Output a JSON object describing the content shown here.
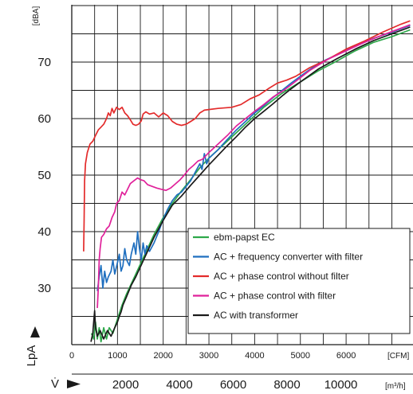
{
  "chart_data": {
    "type": "line",
    "y_unit": "[dBA]",
    "y_axis_label": "LpA",
    "x_unit_top": "[CFM]",
    "x_unit_bottom": "[m³/h]",
    "x_axis_label": "V̇",
    "xlim_cfm": [
      0,
      7400
    ],
    "ylim": [
      20,
      80
    ],
    "x_ticks_cfm": [
      {
        "value": 0,
        "label": "0"
      },
      {
        "value": 1000,
        "label": "1000"
      },
      {
        "value": 2000,
        "label": "2000"
      },
      {
        "value": 3000,
        "label": "3000"
      },
      {
        "value": 4000,
        "label": "4000"
      },
      {
        "value": 5000,
        "label": "5000"
      },
      {
        "value": 6000,
        "label": "6000"
      }
    ],
    "x_ticks_m3h": [
      {
        "value": 2000,
        "label": "2000"
      },
      {
        "value": 4000,
        "label": "4000"
      },
      {
        "value": 6000,
        "label": "6000"
      },
      {
        "value": 8000,
        "label": "8000"
      },
      {
        "value": 10000,
        "label": "10000"
      }
    ],
    "y_ticks": [
      {
        "value": 30,
        "label": "30"
      },
      {
        "value": 40,
        "label": "40"
      },
      {
        "value": 50,
        "label": "50"
      },
      {
        "value": 60,
        "label": "60"
      },
      {
        "value": 70,
        "label": "70"
      }
    ],
    "grid": true,
    "legend_position": "bottom-right",
    "series": [
      {
        "name": "ebm-papst EC",
        "color": "#2ea84a",
        "points": [
          [
            430,
            22
          ],
          [
            480,
            21
          ],
          [
            520,
            24
          ],
          [
            560,
            21
          ],
          [
            600,
            23
          ],
          [
            640,
            20.5
          ],
          [
            700,
            23
          ],
          [
            760,
            21
          ],
          [
            820,
            23
          ],
          [
            900,
            22
          ],
          [
            1000,
            24.5
          ],
          [
            1100,
            27
          ],
          [
            1200,
            29
          ],
          [
            1400,
            32.5
          ],
          [
            1600,
            36
          ],
          [
            1800,
            39.5
          ],
          [
            2000,
            42.5
          ],
          [
            2200,
            45
          ],
          [
            2400,
            47.2
          ],
          [
            2600,
            49.2
          ],
          [
            2800,
            51.3
          ],
          [
            3000,
            53
          ],
          [
            3400,
            56
          ],
          [
            3800,
            59
          ],
          [
            4200,
            62
          ],
          [
            4600,
            64.5
          ],
          [
            5000,
            66.5
          ],
          [
            5400,
            68.5
          ],
          [
            5800,
            70.2
          ],
          [
            6200,
            72
          ],
          [
            6600,
            73.5
          ],
          [
            7000,
            74.5
          ],
          [
            7400,
            75.7
          ]
        ]
      },
      {
        "name": "AC + frequency converter with filter",
        "color": "#1f6fbf",
        "points": [
          [
            560,
            29.5
          ],
          [
            600,
            32
          ],
          [
            640,
            34
          ],
          [
            680,
            30
          ],
          [
            720,
            33
          ],
          [
            760,
            31
          ],
          [
            800,
            32
          ],
          [
            860,
            33
          ],
          [
            900,
            35
          ],
          [
            940,
            32.5
          ],
          [
            1000,
            34.5
          ],
          [
            1040,
            36
          ],
          [
            1080,
            33
          ],
          [
            1120,
            34
          ],
          [
            1160,
            37
          ],
          [
            1200,
            35
          ],
          [
            1260,
            34
          ],
          [
            1300,
            36
          ],
          [
            1360,
            38
          ],
          [
            1400,
            36
          ],
          [
            1440,
            40
          ],
          [
            1480,
            37
          ],
          [
            1520,
            35
          ],
          [
            1560,
            38
          ],
          [
            1600,
            36
          ],
          [
            1640,
            37.5
          ],
          [
            1700,
            36.5
          ],
          [
            1800,
            38
          ],
          [
            1900,
            40
          ],
          [
            2000,
            42.2
          ],
          [
            2100,
            44
          ],
          [
            2200,
            45.5
          ],
          [
            2300,
            46.5
          ],
          [
            2400,
            47
          ],
          [
            2500,
            48
          ],
          [
            2600,
            49
          ],
          [
            2700,
            50.5
          ],
          [
            2800,
            52
          ],
          [
            2850,
            51
          ],
          [
            2900,
            53.8
          ],
          [
            2950,
            52
          ],
          [
            3000,
            53
          ],
          [
            3200,
            54.5
          ],
          [
            3400,
            56.3
          ],
          [
            3600,
            58
          ],
          [
            3800,
            59.5
          ],
          [
            4000,
            61
          ],
          [
            4200,
            62.3
          ],
          [
            4400,
            63.7
          ],
          [
            4600,
            65
          ],
          [
            4800,
            66.3
          ],
          [
            5000,
            67.5
          ],
          [
            5400,
            69.8
          ],
          [
            5800,
            71.3
          ],
          [
            6200,
            72.8
          ],
          [
            6600,
            74.2
          ],
          [
            7000,
            75.3
          ],
          [
            7400,
            76.5
          ]
        ]
      },
      {
        "name": "AC + phase control without filter",
        "color": "#e32b2b",
        "points": [
          [
            260,
            36.5
          ],
          [
            270,
            42
          ],
          [
            280,
            49
          ],
          [
            300,
            52
          ],
          [
            340,
            54
          ],
          [
            400,
            55.5
          ],
          [
            460,
            56
          ],
          [
            520,
            57
          ],
          [
            580,
            58
          ],
          [
            640,
            58.5
          ],
          [
            700,
            59
          ],
          [
            760,
            60
          ],
          [
            800,
            61
          ],
          [
            840,
            60.5
          ],
          [
            880,
            61.8
          ],
          [
            920,
            61
          ],
          [
            980,
            62
          ],
          [
            1040,
            61.6
          ],
          [
            1100,
            62
          ],
          [
            1160,
            61
          ],
          [
            1220,
            60.5
          ],
          [
            1280,
            59.8
          ],
          [
            1340,
            59
          ],
          [
            1400,
            58.8
          ],
          [
            1460,
            59
          ],
          [
            1520,
            59.6
          ],
          [
            1560,
            60.8
          ],
          [
            1620,
            61.2
          ],
          [
            1700,
            60.8
          ],
          [
            1800,
            61
          ],
          [
            1900,
            60.3
          ],
          [
            2000,
            61
          ],
          [
            2100,
            60.5
          ],
          [
            2200,
            59.5
          ],
          [
            2300,
            59
          ],
          [
            2400,
            58.8
          ],
          [
            2500,
            59
          ],
          [
            2600,
            59.5
          ],
          [
            2700,
            60
          ],
          [
            2800,
            61
          ],
          [
            2900,
            61.5
          ],
          [
            3000,
            61.6
          ],
          [
            3200,
            61.8
          ],
          [
            3500,
            62
          ],
          [
            3700,
            62.5
          ],
          [
            3900,
            63.5
          ],
          [
            4100,
            64.2
          ],
          [
            4300,
            65.3
          ],
          [
            4500,
            66.3
          ],
          [
            4700,
            66.8
          ],
          [
            4900,
            67.5
          ],
          [
            5200,
            69
          ],
          [
            5600,
            70.5
          ],
          [
            6000,
            72.3
          ],
          [
            6400,
            73.7
          ],
          [
            6800,
            75.3
          ],
          [
            7200,
            76.7
          ],
          [
            7400,
            77.3
          ]
        ]
      },
      {
        "name": "AC + phase control with filter",
        "color": "#e0219a",
        "points": [
          [
            560,
            26.5
          ],
          [
            580,
            30
          ],
          [
            600,
            35
          ],
          [
            620,
            37
          ],
          [
            650,
            39
          ],
          [
            700,
            39.5
          ],
          [
            760,
            40.5
          ],
          [
            820,
            41
          ],
          [
            880,
            42.5
          ],
          [
            940,
            43.5
          ],
          [
            980,
            45
          ],
          [
            1040,
            45.5
          ],
          [
            1100,
            47
          ],
          [
            1160,
            46.5
          ],
          [
            1220,
            47.5
          ],
          [
            1280,
            48.5
          ],
          [
            1360,
            49
          ],
          [
            1440,
            49.5
          ],
          [
            1500,
            49.2
          ],
          [
            1580,
            49
          ],
          [
            1660,
            48.3
          ],
          [
            1760,
            48
          ],
          [
            1860,
            47.7
          ],
          [
            1960,
            47.5
          ],
          [
            2060,
            47.3
          ],
          [
            2160,
            47.7
          ],
          [
            2260,
            48.4
          ],
          [
            2360,
            49.1
          ],
          [
            2460,
            50
          ],
          [
            2560,
            51
          ],
          [
            2660,
            51.7
          ],
          [
            2760,
            52.5
          ],
          [
            2860,
            52.8
          ],
          [
            3000,
            54
          ],
          [
            3200,
            55.5
          ],
          [
            3400,
            57
          ],
          [
            3600,
            58.7
          ],
          [
            3800,
            60
          ],
          [
            4000,
            61.3
          ],
          [
            4200,
            62.5
          ],
          [
            4400,
            63.8
          ],
          [
            4600,
            64.8
          ],
          [
            4800,
            66
          ],
          [
            5200,
            68.5
          ],
          [
            5600,
            70.5
          ],
          [
            6000,
            72
          ],
          [
            6400,
            73.5
          ],
          [
            6800,
            74.8
          ],
          [
            7200,
            76
          ],
          [
            7400,
            76.6
          ]
        ]
      },
      {
        "name": "AC with transformer",
        "color": "#1a1a1a",
        "points": [
          [
            420,
            20.5
          ],
          [
            460,
            22
          ],
          [
            480,
            24
          ],
          [
            500,
            26
          ],
          [
            520,
            23
          ],
          [
            560,
            21.5
          ],
          [
            620,
            22.5
          ],
          [
            700,
            21
          ],
          [
            780,
            22.5
          ],
          [
            860,
            21.5
          ],
          [
            940,
            23
          ],
          [
            1000,
            24
          ],
          [
            1040,
            25
          ],
          [
            1080,
            25.8
          ],
          [
            1120,
            27
          ],
          [
            1200,
            28.5
          ],
          [
            1300,
            30.5
          ],
          [
            1400,
            32
          ],
          [
            1600,
            35.5
          ],
          [
            1800,
            39
          ],
          [
            2000,
            42
          ],
          [
            2200,
            44.7
          ],
          [
            2400,
            46.3
          ],
          [
            2600,
            48.2
          ],
          [
            2800,
            50
          ],
          [
            3000,
            51.8
          ],
          [
            3200,
            53.5
          ],
          [
            3400,
            55.2
          ],
          [
            3600,
            56.8
          ],
          [
            3800,
            58.5
          ],
          [
            4000,
            60
          ],
          [
            4200,
            61.3
          ],
          [
            4400,
            62.6
          ],
          [
            4600,
            64
          ],
          [
            4800,
            65.3
          ],
          [
            5000,
            66.5
          ],
          [
            5400,
            68.8
          ],
          [
            5800,
            70.6
          ],
          [
            6200,
            72.3
          ],
          [
            6600,
            73.8
          ],
          [
            7000,
            75
          ],
          [
            7400,
            76.2
          ]
        ]
      }
    ]
  }
}
